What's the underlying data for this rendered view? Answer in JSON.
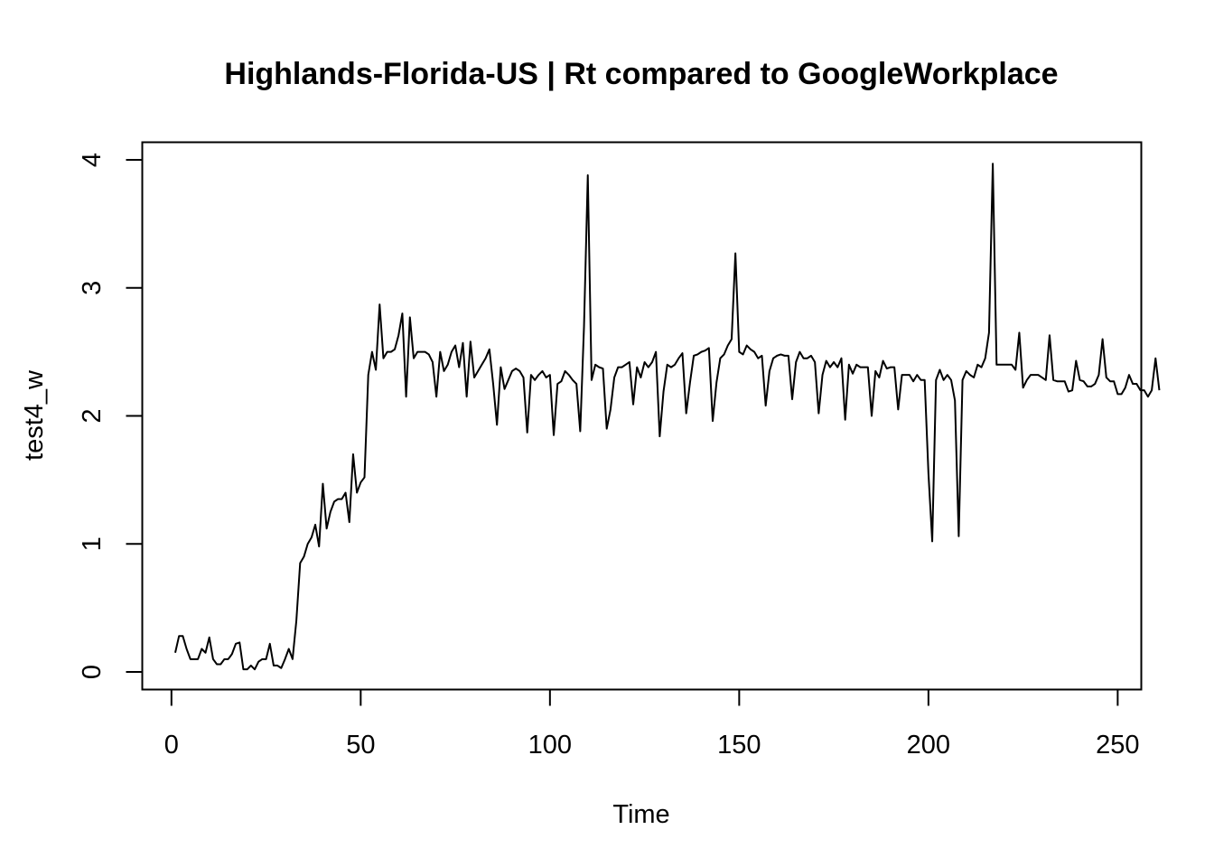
{
  "chart_data": {
    "type": "line",
    "title": "Highlands-Florida-US | Rt compared to GoogleWorkplace",
    "xlabel": "Time",
    "ylabel": "test4_w",
    "xlim": [
      1,
      248
    ],
    "ylim": [
      0,
      4
    ],
    "x_ticks": [
      0,
      50,
      100,
      150,
      200,
      250
    ],
    "x_tick_labels": [
      "0",
      "50",
      "100",
      "150",
      "200",
      "250"
    ],
    "y_ticks": [
      0,
      1,
      2,
      3,
      4
    ],
    "y_tick_labels": [
      "0",
      "1",
      "2",
      "3",
      "4"
    ],
    "grid": false,
    "legend": "none",
    "line_color": "#000000",
    "series": [
      {
        "x_start": 1,
        "values": [
          0.15,
          0.28,
          0.28,
          0.18,
          0.1,
          0.1,
          0.1,
          0.18,
          0.15,
          0.27,
          0.1,
          0.06,
          0.06,
          0.1,
          0.1,
          0.14,
          0.22,
          0.23,
          0.02,
          0.02,
          0.05,
          0.02,
          0.08,
          0.1,
          0.1,
          0.22,
          0.05,
          0.05,
          0.03,
          0.1,
          0.18,
          0.1,
          0.4,
          0.85,
          0.9,
          1.0,
          1.05,
          1.15,
          0.98,
          1.47,
          1.12,
          1.25,
          1.33,
          1.35,
          1.35,
          1.4,
          1.17,
          1.7,
          1.4,
          1.48,
          1.52,
          2.32,
          2.5,
          2.36,
          2.87,
          2.45,
          2.5,
          2.5,
          2.52,
          2.63,
          2.8,
          2.15,
          2.77,
          2.45,
          2.5,
          2.5,
          2.5,
          2.48,
          2.42,
          2.15,
          2.5,
          2.35,
          2.4,
          2.5,
          2.55,
          2.38,
          2.57,
          2.15,
          2.58,
          2.3,
          2.35,
          2.4,
          2.45,
          2.52,
          2.25,
          1.93,
          2.38,
          2.21,
          2.28,
          2.35,
          2.37,
          2.35,
          2.3,
          1.87,
          2.32,
          2.28,
          2.32,
          2.35,
          2.3,
          2.32,
          1.85,
          2.25,
          2.27,
          2.35,
          2.32,
          2.28,
          2.25,
          1.88,
          2.7,
          3.88,
          2.28,
          2.4,
          2.38,
          2.37,
          1.9,
          2.05,
          2.3,
          2.38,
          2.38,
          2.4,
          2.42,
          2.09,
          2.38,
          2.3,
          2.42,
          2.38,
          2.42,
          2.5,
          1.84,
          2.19,
          2.4,
          2.38,
          2.4,
          2.45,
          2.49,
          2.02,
          2.26,
          2.47,
          2.48,
          2.5,
          2.51,
          2.53,
          1.96,
          2.26,
          2.45,
          2.48,
          2.55,
          2.6,
          3.27,
          2.5,
          2.48,
          2.55,
          2.52,
          2.5,
          2.45,
          2.47,
          2.08,
          2.35,
          2.45,
          2.47,
          2.48,
          2.47,
          2.47,
          2.13,
          2.42,
          2.5,
          2.45,
          2.45,
          2.47,
          2.42,
          2.02,
          2.32,
          2.43,
          2.38,
          2.42,
          2.38,
          2.45,
          1.97,
          2.4,
          2.33,
          2.4,
          2.38,
          2.38,
          2.38,
          2.0,
          2.35,
          2.3,
          2.43,
          2.37,
          2.38,
          2.38,
          2.05,
          2.32,
          2.32,
          2.32,
          2.27,
          2.32,
          2.28,
          2.28,
          1.55,
          1.02,
          2.28,
          2.36,
          2.28,
          2.32,
          2.28,
          2.12,
          1.06,
          2.28,
          2.35,
          2.32,
          2.3,
          2.4,
          2.38,
          2.45,
          2.65,
          3.97,
          2.4,
          2.4,
          2.4,
          2.4,
          2.4,
          2.36,
          2.65,
          2.22,
          2.28,
          2.32,
          2.32,
          2.32,
          2.3,
          2.28,
          2.63,
          2.28,
          2.27,
          2.27,
          2.27,
          2.19,
          2.2,
          2.43,
          2.28,
          2.27,
          2.23,
          2.23,
          2.25,
          2.32,
          2.6,
          2.3,
          2.27,
          2.27,
          2.17,
          2.17,
          2.22,
          2.32,
          2.25,
          2.25,
          2.2,
          2.2,
          2.15,
          2.2,
          2.45,
          2.2
        ]
      }
    ]
  }
}
